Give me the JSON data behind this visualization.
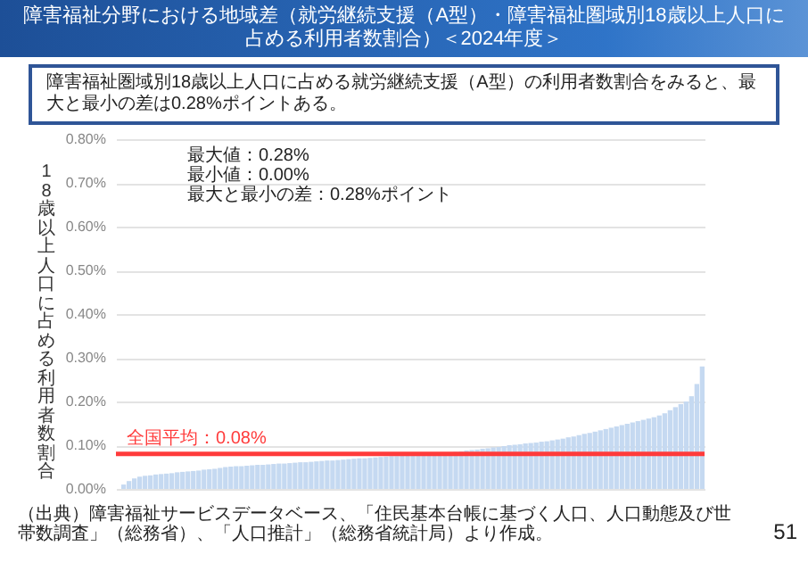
{
  "chart_data": {
    "type": "bar",
    "title": "障害福祉分野における地域差（就労継続支援（A型）・障害福祉圏域別18歳以上人口に占める利用者数割合）＜2024年度＞",
    "subtitle": "障害福祉圏域別18歳以上人口に占める就労継続支援（A型）の利用者数割合をみると、最大と最小の差は0.28%ポイントある。",
    "ylabel": "18歳以上人口に占める利用者数割合",
    "annotations": [
      "最大値：0.28%",
      "最小値：0.00%",
      "最大と最小の差：0.28%ポイント",
      "（出典）障害福祉サービスデータベース、「住民基本台帳に基づく人口、人口動態及び世帯数調査」（総務省）、「人口推計」（総務省統計局）より作成。",
      "51"
    ],
    "categories": [
      null,
      null,
      null,
      null,
      null,
      null,
      null,
      null,
      null,
      null,
      null,
      null,
      null,
      null,
      null,
      null,
      null,
      null,
      null,
      null,
      null,
      null,
      null,
      null,
      null,
      null,
      null,
      null,
      null,
      null,
      null,
      null,
      null,
      null,
      null,
      null,
      null,
      null,
      null,
      null,
      null,
      null,
      null,
      null,
      null,
      null,
      null,
      null,
      null,
      null,
      null,
      null,
      null,
      null,
      null,
      null,
      null,
      null,
      null,
      null,
      null,
      null,
      null,
      null,
      null,
      null,
      null,
      null,
      null,
      null,
      null,
      null,
      null,
      null,
      null,
      null,
      null,
      null,
      null,
      null,
      null,
      null,
      null,
      null,
      null,
      null,
      null,
      null,
      null,
      null,
      null,
      null,
      null,
      null,
      null,
      null,
      null,
      null,
      null,
      null,
      null,
      null,
      null,
      null,
      null,
      null,
      null,
      null,
      null,
      null
    ],
    "values": [
      0.0,
      0.01,
      0.018,
      0.024,
      0.028,
      0.03,
      0.031,
      0.033,
      0.034,
      0.035,
      0.036,
      0.038,
      0.039,
      0.04,
      0.041,
      0.042,
      0.044,
      0.045,
      0.046,
      0.048,
      0.05,
      0.051,
      0.052,
      0.052,
      0.053,
      0.054,
      0.055,
      0.055,
      0.056,
      0.057,
      0.058,
      0.058,
      0.059,
      0.06,
      0.061,
      0.061,
      0.062,
      0.063,
      0.064,
      0.065,
      0.065,
      0.066,
      0.067,
      0.068,
      0.069,
      0.07,
      0.07,
      0.071,
      0.072,
      0.073,
      0.074,
      0.075,
      0.075,
      0.076,
      0.077,
      0.078,
      0.079,
      0.08,
      0.08,
      0.081,
      0.082,
      0.083,
      0.084,
      0.085,
      0.086,
      0.088,
      0.089,
      0.09,
      0.092,
      0.093,
      0.095,
      0.096,
      0.098,
      0.1,
      0.101,
      0.102,
      0.104,
      0.105,
      0.106,
      0.108,
      0.109,
      0.111,
      0.113,
      0.115,
      0.118,
      0.12,
      0.123,
      0.126,
      0.128,
      0.131,
      0.134,
      0.137,
      0.14,
      0.143,
      0.146,
      0.149,
      0.152,
      0.155,
      0.158,
      0.161,
      0.164,
      0.168,
      0.173,
      0.18,
      0.187,
      0.194,
      0.2,
      0.212,
      0.24,
      0.28
    ],
    "color": "#c5d9f1",
    "ylim": [
      0,
      0.8
    ],
    "yticks": [
      {
        "value": 0,
        "label": "0.00%"
      },
      {
        "value": 0.1,
        "label": "0.10%"
      },
      {
        "value": 0.2,
        "label": "0.20%"
      },
      {
        "value": 0.3,
        "label": "0.30%"
      },
      {
        "value": 0.4,
        "label": "0.40%"
      },
      {
        "value": 0.5,
        "label": "0.50%"
      },
      {
        "value": 0.6,
        "label": "0.60%"
      },
      {
        "value": 0.7,
        "label": "0.70%"
      },
      {
        "value": 0.8,
        "label": "0.80%"
      }
    ],
    "ref_lines": [
      {
        "axis": "y",
        "value": 0.08,
        "label": "全国平均：0.08%",
        "color": "#ff3b3b"
      }
    ],
    "grid": "y",
    "tick_labels": "y"
  }
}
